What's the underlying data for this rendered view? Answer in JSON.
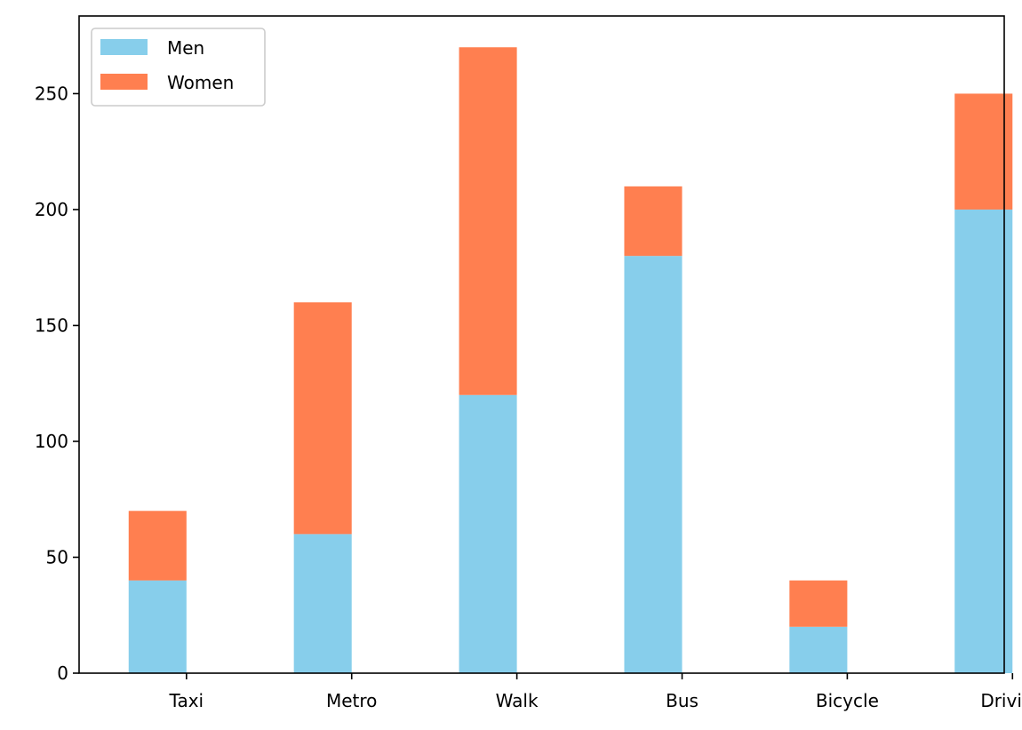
{
  "chart_data": {
    "type": "bar",
    "stacked": true,
    "categories": [
      "Taxi",
      "Metro",
      "Walk",
      "Bus",
      "Bicycle",
      "Driving"
    ],
    "series": [
      {
        "name": "Men",
        "color": "#87ceeb",
        "values": [
          40,
          60,
          120,
          180,
          20,
          200
        ]
      },
      {
        "name": "Women",
        "color": "#ff7f50",
        "values": [
          30,
          100,
          150,
          30,
          20,
          50
        ]
      }
    ],
    "title": "",
    "xlabel": "",
    "ylabel": "",
    "ylim": [
      0,
      283.5
    ],
    "yticks": [
      0,
      50,
      100,
      150,
      200,
      250
    ],
    "grid": false,
    "legend": {
      "location": "upper-left",
      "entries": [
        "Men",
        "Women"
      ]
    }
  }
}
